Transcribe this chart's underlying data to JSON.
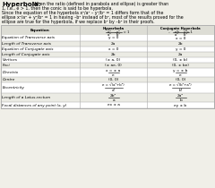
{
  "title": "Hyperbola",
  "header_lines": [
    "  When the ratio (defined in parabola and ellipse) is greater than",
    "1, i.e., e > 1, then the conic is said to be hyperbola.",
    "Since the equation of the hyperbola x²/a² – y²/b² = 1 differs form that of the",
    "ellipse x²/a² + y²/b² = 1 in having –b² instead of b², most of the results proved for the",
    "ellipse are true for the hyperbola, if we replace b² by –b² in their proofs."
  ],
  "col0_header": "Equation",
  "col1_header": "Hyperbola  x²    y²\n          —— – —— = 1\n          a²    b²",
  "col2_header": "Conjugate Hyperbola  x²    y²\n                   –—— + —— = 1\n                    a²    b²",
  "rows": [
    [
      "Equation of Transverse axis",
      "y = 0",
      "x = 0"
    ],
    [
      "Length of Transverse axis",
      "2a",
      "2b"
    ],
    [
      "Equation of Conjugate axis",
      "x = 0",
      "y = 0"
    ],
    [
      "Length of Conjugate axis",
      "2b",
      "2a"
    ],
    [
      "Vertices",
      "(± a, 0)",
      "(0, ± b)"
    ],
    [
      "Foci",
      "(± ae, 0)",
      "(0, ± be)"
    ],
    [
      "Directrix",
      "x = ± a/e",
      "y = ± b/e"
    ],
    [
      "Centre",
      "(0, 0)",
      "(0, 0)"
    ],
    [
      "Eccentricity",
      "e = √(a²+b²)/a²",
      "e = √(b²+a²)/b²"
    ],
    [
      "Length of a Latus-rectum",
      "2b²/a",
      "2a²/b"
    ],
    [
      "Focal distances of any point (x, y)",
      "ex ± a",
      "ey ± b"
    ]
  ],
  "bg_color": "#f0efe8",
  "white": "#ffffff",
  "gray_header": "#ddddd5",
  "border_color": "#aaaaaa",
  "text_color": "#000000",
  "alt_row_color": "#ebebE4"
}
